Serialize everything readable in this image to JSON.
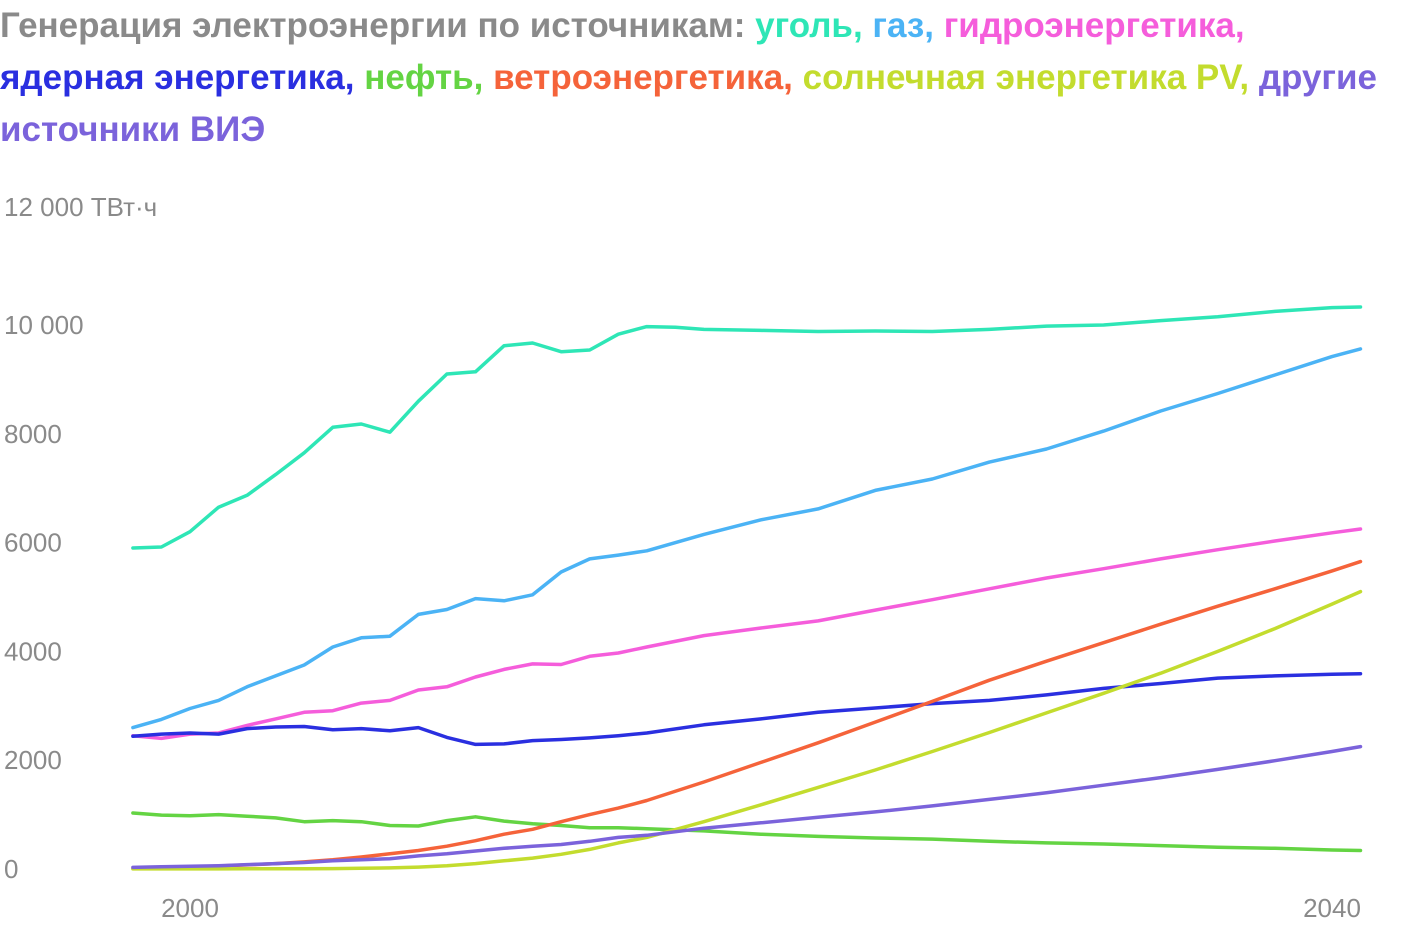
{
  "chart_data": {
    "type": "line",
    "title_prefix": "Генерация электроэнергии по источникам: ",
    "y_unit_label": "12 000 ТВт·ч",
    "ylim": [
      0,
      12000
    ],
    "y_ticks": [
      {
        "value": 0,
        "label": "0"
      },
      {
        "value": 2000,
        "label": "2000"
      },
      {
        "value": 4000,
        "label": "4000"
      },
      {
        "value": 6000,
        "label": "6000"
      },
      {
        "value": 8000,
        "label": "8000"
      },
      {
        "value": 10000,
        "label": "10 000"
      }
    ],
    "x_ticks": [
      {
        "value": 2000,
        "label": "2000"
      },
      {
        "value": 2040,
        "label": "2040"
      }
    ],
    "grid": false,
    "legend": "title",
    "series": [
      {
        "name": "уголь",
        "color": "#2ee6b6",
        "x": [
          1998,
          1999,
          2000,
          2001,
          2002,
          2003,
          2004,
          2005,
          2006,
          2007,
          2008,
          2009,
          2010,
          2011,
          2012,
          2013,
          2014,
          2015,
          2016,
          2017,
          2018,
          2020,
          2022,
          2024,
          2026,
          2028,
          2030,
          2032,
          2034,
          2036,
          2038,
          2040,
          2041
        ],
        "values": [
          5900,
          5920,
          6200,
          6650,
          6870,
          7250,
          7650,
          8120,
          8180,
          8030,
          8600,
          9100,
          9140,
          9620,
          9670,
          9510,
          9540,
          9830,
          9970,
          9960,
          9920,
          9900,
          9880,
          9890,
          9880,
          9920,
          9980,
          10000,
          10080,
          10150,
          10250,
          10320,
          10330
        ]
      },
      {
        "name": "газ",
        "color": "#4bb3f5",
        "x": [
          1998,
          1999,
          2000,
          2001,
          2002,
          2003,
          2004,
          2005,
          2006,
          2007,
          2008,
          2009,
          2010,
          2011,
          2012,
          2013,
          2014,
          2015,
          2016,
          2018,
          2020,
          2022,
          2024,
          2026,
          2028,
          2030,
          2032,
          2034,
          2036,
          2038,
          2040,
          2041
        ],
        "values": [
          2600,
          2750,
          2950,
          3100,
          3350,
          3550,
          3750,
          4080,
          4250,
          4280,
          4680,
          4770,
          4970,
          4930,
          5040,
          5460,
          5700,
          5770,
          5850,
          6150,
          6420,
          6620,
          6960,
          7170,
          7480,
          7720,
          8050,
          8420,
          8740,
          9080,
          9420,
          9560
        ]
      },
      {
        "name": "гидроэнергетика",
        "color": "#f55ddb",
        "x": [
          1998,
          1999,
          2000,
          2001,
          2002,
          2003,
          2004,
          2005,
          2006,
          2007,
          2008,
          2009,
          2010,
          2011,
          2012,
          2013,
          2014,
          2015,
          2016,
          2018,
          2020,
          2022,
          2024,
          2026,
          2028,
          2030,
          2032,
          2034,
          2036,
          2038,
          2040,
          2041
        ],
        "values": [
          2450,
          2400,
          2480,
          2500,
          2640,
          2760,
          2880,
          2910,
          3050,
          3100,
          3290,
          3350,
          3530,
          3670,
          3770,
          3760,
          3910,
          3970,
          4080,
          4290,
          4430,
          4560,
          4760,
          4950,
          5150,
          5350,
          5520,
          5700,
          5870,
          6030,
          6180,
          6250
        ]
      },
      {
        "name": "ядерная энергетика",
        "color": "#2a2fe0",
        "x": [
          1998,
          1999,
          2000,
          2001,
          2002,
          2003,
          2004,
          2005,
          2006,
          2007,
          2008,
          2009,
          2010,
          2011,
          2012,
          2013,
          2014,
          2015,
          2016,
          2018,
          2020,
          2022,
          2024,
          2026,
          2028,
          2030,
          2032,
          2034,
          2036,
          2038,
          2040,
          2041
        ],
        "values": [
          2440,
          2480,
          2500,
          2480,
          2580,
          2610,
          2620,
          2560,
          2580,
          2540,
          2600,
          2420,
          2290,
          2300,
          2360,
          2380,
          2410,
          2450,
          2500,
          2650,
          2760,
          2880,
          2960,
          3040,
          3100,
          3200,
          3320,
          3410,
          3510,
          3550,
          3580,
          3590
        ]
      },
      {
        "name": "нефть",
        "color": "#64d443",
        "x": [
          1998,
          1999,
          2000,
          2001,
          2002,
          2003,
          2004,
          2005,
          2006,
          2007,
          2008,
          2009,
          2010,
          2011,
          2012,
          2013,
          2014,
          2015,
          2016,
          2018,
          2020,
          2022,
          2024,
          2026,
          2028,
          2030,
          2032,
          2034,
          2036,
          2038,
          2040,
          2041
        ],
        "values": [
          1030,
          990,
          980,
          1000,
          970,
          940,
          870,
          890,
          870,
          800,
          790,
          890,
          960,
          880,
          830,
          800,
          760,
          760,
          740,
          700,
          640,
          600,
          570,
          550,
          510,
          480,
          460,
          430,
          400,
          380,
          350,
          340
        ]
      },
      {
        "name": "ветроэнергетика",
        "color": "#f5633a",
        "x": [
          1998,
          1999,
          2000,
          2001,
          2002,
          2003,
          2004,
          2005,
          2006,
          2007,
          2008,
          2009,
          2010,
          2011,
          2012,
          2013,
          2014,
          2015,
          2016,
          2018,
          2020,
          2022,
          2024,
          2026,
          2028,
          2030,
          2032,
          2034,
          2036,
          2038,
          2040,
          2041
        ],
        "values": [
          10,
          20,
          35,
          55,
          75,
          100,
          130,
          170,
          220,
          280,
          340,
          420,
          520,
          640,
          730,
          870,
          1000,
          1120,
          1260,
          1600,
          1960,
          2320,
          2700,
          3080,
          3470,
          3820,
          4160,
          4500,
          4830,
          5150,
          5480,
          5650
        ]
      },
      {
        "name": "солнечная энергетика PV",
        "color": "#c3dc2e",
        "x": [
          1998,
          1999,
          2000,
          2001,
          2002,
          2003,
          2004,
          2005,
          2006,
          2007,
          2008,
          2009,
          2010,
          2011,
          2012,
          2013,
          2014,
          2015,
          2016,
          2018,
          2020,
          2022,
          2024,
          2026,
          2028,
          2030,
          2032,
          2034,
          2036,
          2038,
          2040,
          2041
        ],
        "values": [
          1,
          1,
          1,
          2,
          3,
          4,
          6,
          8,
          12,
          20,
          35,
          60,
          100,
          150,
          200,
          270,
          360,
          480,
          580,
          870,
          1180,
          1500,
          1820,
          2160,
          2510,
          2870,
          3230,
          3600,
          4000,
          4420,
          4870,
          5100
        ]
      },
      {
        "name": "другие источники ВИЭ",
        "color": "#7b63db",
        "x": [
          1998,
          1999,
          2000,
          2001,
          2002,
          2003,
          2004,
          2005,
          2006,
          2007,
          2008,
          2009,
          2010,
          2011,
          2012,
          2013,
          2014,
          2015,
          2016,
          2018,
          2020,
          2022,
          2024,
          2026,
          2028,
          2030,
          2032,
          2034,
          2036,
          2038,
          2040,
          2041
        ],
        "values": [
          30,
          40,
          50,
          60,
          80,
          100,
          120,
          150,
          170,
          190,
          240,
          280,
          330,
          380,
          420,
          450,
          510,
          580,
          620,
          750,
          850,
          950,
          1050,
          1160,
          1280,
          1400,
          1540,
          1680,
          1830,
          1990,
          2160,
          2250
        ]
      }
    ]
  }
}
